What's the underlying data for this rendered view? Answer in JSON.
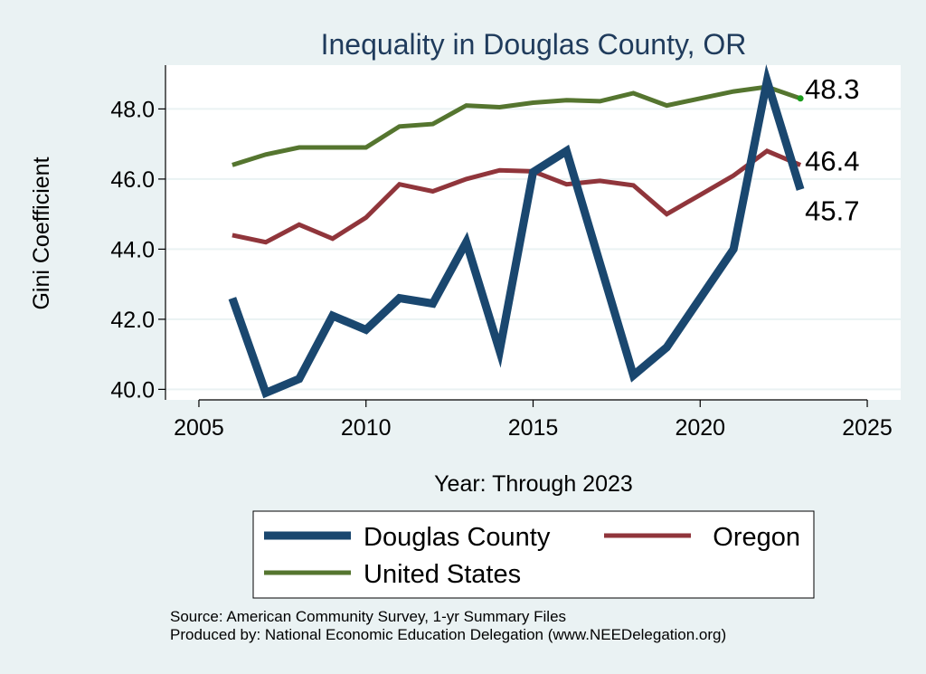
{
  "chart_data": {
    "type": "line",
    "title": "Inequality in Douglas County, OR",
    "xlabel": "Year: Through 2023",
    "ylabel": "Gini Coefficient",
    "xlim": [
      2004,
      2026
    ],
    "ylim": [
      39.7,
      49.25
    ],
    "xticks": [
      2005,
      2010,
      2015,
      2020,
      2025
    ],
    "xtick_labels": [
      "2005",
      "2010",
      "2015",
      "2020",
      "2025"
    ],
    "yticks": [
      40,
      42,
      44,
      46,
      48
    ],
    "ytick_labels": [
      "40.0",
      "42.0",
      "44.0",
      "46.0",
      "48.0"
    ],
    "grid": true,
    "legend_position": "bottom",
    "x": [
      2006,
      2007,
      2008,
      2009,
      2010,
      2011,
      2012,
      2013,
      2014,
      2015,
      2016,
      2017,
      2018,
      2019,
      2020,
      2021,
      2022,
      2023
    ],
    "series": [
      {
        "name": "Douglas County",
        "color": "#1a476f",
        "values": [
          42.6,
          39.9,
          40.3,
          42.1,
          41.7,
          42.6,
          42.45,
          44.2,
          41.1,
          46.2,
          46.8,
          43.6,
          40.4,
          41.2,
          42.6,
          44.0,
          48.8,
          45.7
        ]
      },
      {
        "name": "Oregon",
        "color": "#90353b",
        "values": [
          44.4,
          44.2,
          44.7,
          44.3,
          44.9,
          45.85,
          45.65,
          46.0,
          46.25,
          46.22,
          45.85,
          45.95,
          45.82,
          45.0,
          45.55,
          46.1,
          46.8,
          46.4
        ]
      },
      {
        "name": "United States",
        "color": "#55752f",
        "values": [
          46.4,
          46.7,
          46.9,
          46.9,
          46.9,
          47.5,
          47.57,
          48.1,
          48.05,
          48.18,
          48.25,
          48.22,
          48.45,
          48.1,
          48.3,
          48.5,
          48.63,
          48.3
        ]
      }
    ],
    "end_labels": [
      {
        "series": "United States",
        "text": "48.3"
      },
      {
        "series": "Oregon",
        "text": "46.4"
      },
      {
        "series": "Douglas County",
        "text": "45.7"
      }
    ]
  },
  "notes": {
    "source": "Source: American Community Survey, 1-yr Summary Files",
    "produced_by": "Produced by: National Economic Education Delegation (www.NEEDelegation.org)"
  }
}
